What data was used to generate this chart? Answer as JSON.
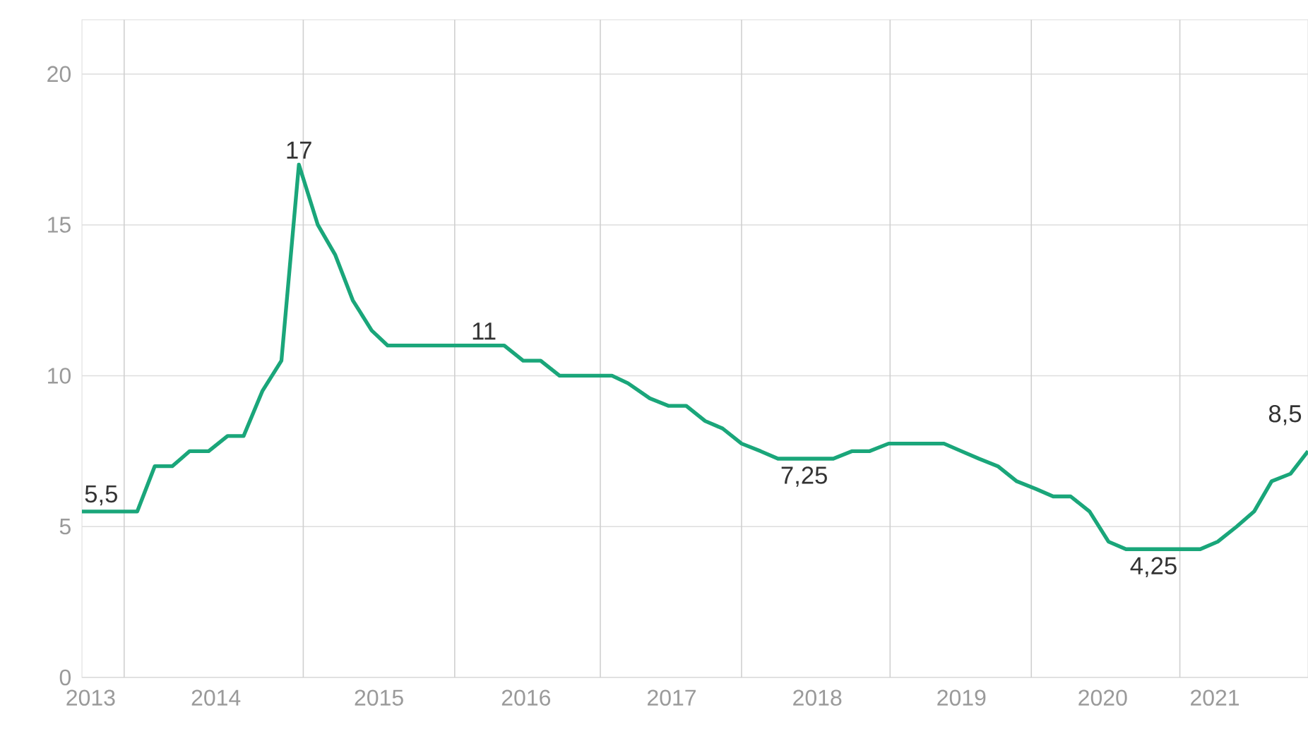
{
  "chart_data": {
    "type": "line",
    "color": "#1aa67a",
    "x": [
      2013.44,
      2013.82,
      2013.94,
      2014.06,
      2014.18,
      2014.31,
      2014.44,
      2014.55,
      2014.68,
      2014.81,
      2014.93,
      2015.06,
      2015.18,
      2015.3,
      2015.43,
      2015.54,
      2016.34,
      2016.47,
      2016.59,
      2016.72,
      2017.08,
      2017.19,
      2017.34,
      2017.47,
      2017.59,
      2017.72,
      2017.84,
      2017.97,
      2018.1,
      2018.22,
      2018.6,
      2018.73,
      2018.85,
      2018.98,
      2019.36,
      2019.48,
      2019.6,
      2019.73,
      2019.86,
      2019.99,
      2020.11,
      2020.23,
      2020.36,
      2020.49,
      2020.61,
      2021.12,
      2021.24,
      2021.37,
      2021.49,
      2021.61,
      2021.74,
      2021.86
    ],
    "values": [
      5.5,
      5.5,
      7,
      7,
      7.5,
      7.5,
      8,
      8,
      9.5,
      10.5,
      17,
      15,
      14,
      12.5,
      11.5,
      11,
      11,
      10.5,
      10.5,
      10,
      10,
      9.75,
      9.25,
      9,
      9,
      8.5,
      8.25,
      7.75,
      7.5,
      7.25,
      7.25,
      7.5,
      7.5,
      7.75,
      7.75,
      7.5,
      7.25,
      7,
      6.5,
      6.25,
      6,
      6,
      5.5,
      4.5,
      4.25,
      4.25,
      4.5,
      5,
      5.5,
      6.5,
      6.75,
      7.5
    ],
    "xlim": [
      2013.44,
      2021.86
    ],
    "ylim": [
      0,
      21.8
    ],
    "xticks": [
      {
        "value": 2013.5,
        "label": "2013"
      },
      {
        "value": 2014.36,
        "label": "2014"
      },
      {
        "value": 2015.48,
        "label": "2015"
      },
      {
        "value": 2016.49,
        "label": "2016"
      },
      {
        "value": 2017.49,
        "label": "2017"
      },
      {
        "value": 2018.49,
        "label": "2018"
      },
      {
        "value": 2019.48,
        "label": "2019"
      },
      {
        "value": 2020.45,
        "label": "2020"
      },
      {
        "value": 2021.22,
        "label": "2021"
      }
    ],
    "yticks": [
      0,
      5,
      10,
      15,
      20
    ],
    "grid": "y",
    "marker": "none",
    "line_style": "solid",
    "ref_lines": [
      {
        "axis": "x",
        "value": 2013.73,
        "color": "#d0d0d0"
      },
      {
        "axis": "x",
        "value": 2014.96,
        "color": "#d0d0d0"
      },
      {
        "axis": "x",
        "value": 2016,
        "color": "#d0d0d0"
      },
      {
        "axis": "x",
        "value": 2017,
        "color": "#d0d0d0"
      },
      {
        "axis": "x",
        "value": 2017.97,
        "color": "#d0d0d0"
      },
      {
        "axis": "x",
        "value": 2018.99,
        "color": "#d0d0d0"
      },
      {
        "axis": "x",
        "value": 2019.96,
        "color": "#d0d0d0"
      },
      {
        "axis": "x",
        "value": 2020.98,
        "color": "#d0d0d0"
      }
    ],
    "annotations": [
      {
        "text": "5,5",
        "x": 2013.44,
        "y": 5.5
      },
      {
        "text": "17",
        "x": 2014.93,
        "y": 17
      },
      {
        "text": "11",
        "x": 2016.2,
        "y": 11
      },
      {
        "text": "7,25",
        "x": 2018.4,
        "y": 7.25
      },
      {
        "text": "4,25",
        "x": 2020.8,
        "y": 4.25
      },
      "8,5"
    ]
  }
}
